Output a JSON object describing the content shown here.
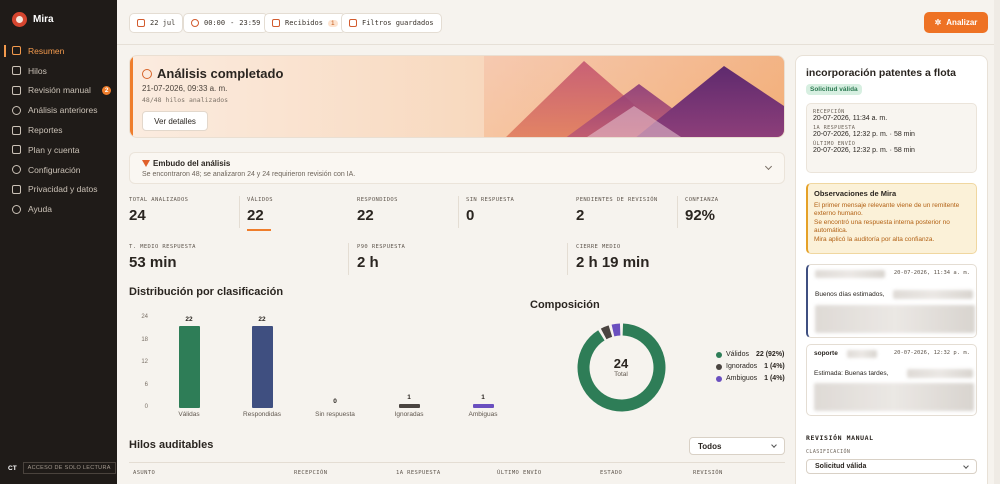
{
  "app": {
    "name": "Mira"
  },
  "sidebar": {
    "items": [
      {
        "label": "Resumen",
        "active": true
      },
      {
        "label": "Hilos"
      },
      {
        "label": "Revisión manual",
        "badge": "2"
      },
      {
        "label": "Análisis anteriores"
      },
      {
        "label": "Reportes"
      },
      {
        "label": "Plan y cuenta"
      },
      {
        "label": "Configuración"
      },
      {
        "label": "Privacidad y datos"
      },
      {
        "label": "Ayuda"
      }
    ],
    "user_initials": "CT",
    "access_label": "ACCESO DE SOLO LECTURA"
  },
  "topbar": {
    "date": "22 jul",
    "time_from": "00:00",
    "time_sep": "-",
    "time_to": "23:59",
    "folder": "Recibidos",
    "folder_count": "1",
    "saved_filters": "Filtros guardados",
    "analyze_label": "Analizar"
  },
  "hero": {
    "title": "Análisis completado",
    "date": "21-07-2026, 09:33 a. m.",
    "sub": "48/48 hilos analizados",
    "button": "Ver detalles"
  },
  "funnel": {
    "title": "Embudo del análisis",
    "desc": "Se encontraron 48; se analizaron 24 y 24 requirieron revisión con IA."
  },
  "stats": [
    {
      "label": "TOTAL ANALIZADOS",
      "value": "24"
    },
    {
      "label": "VÁLIDOS",
      "value": "22"
    },
    {
      "label": "RESPONDIDOS",
      "value": "22"
    },
    {
      "label": "SIN RESPUESTA",
      "value": "0"
    },
    {
      "label": "PENDIENTES DE REVISIÓN",
      "value": "2"
    },
    {
      "label": "CONFIANZA",
      "value": "92%"
    },
    {
      "label": "T. MEDIO RESPUESTA",
      "value": "53 min"
    },
    {
      "label": "P90 RESPUESTA",
      "value": "2 h"
    },
    {
      "label": "CIERRE MEDIO",
      "value": "2 h 19 min"
    }
  ],
  "distribution": {
    "title": "Distribución por clasificación"
  },
  "composition": {
    "title": "Composición",
    "center_value": "24",
    "center_label": "Total",
    "legend": [
      {
        "label": "Válidos",
        "value": "22 (92%)",
        "color": "#2e7d57"
      },
      {
        "label": "Ignorados",
        "value": "1 (4%)",
        "color": "#4a4440"
      },
      {
        "label": "Ambiguos",
        "value": "1 (4%)",
        "color": "#6a4fbf"
      }
    ]
  },
  "chart_data": [
    {
      "type": "bar",
      "title": "Distribución por clasificación",
      "categories": [
        "Válidas",
        "Respondidas",
        "Sin respuesta",
        "Ignoradas",
        "Ambiguas"
      ],
      "values": [
        22,
        22,
        0,
        1,
        1
      ],
      "colors": [
        "#2e7d57",
        "#3f4f80",
        "#c9c2b8",
        "#4a4440",
        "#6a4fbf"
      ],
      "yticks": [
        0,
        6,
        12,
        18,
        24
      ],
      "ylim": [
        0,
        24
      ],
      "grid": false
    },
    {
      "type": "pie",
      "title": "Composición",
      "donut": true,
      "labels": [
        "Válidos",
        "Ignorados",
        "Ambiguos"
      ],
      "values": [
        22,
        1,
        1
      ],
      "colors": [
        "#2e7d57",
        "#4a4440",
        "#6a4fbf"
      ]
    }
  ],
  "threads": {
    "title": "Hilos auditables",
    "filter_value": "Todos",
    "columns": [
      "ASUNTO",
      "RECEPCIÓN",
      "1A RESPUESTA",
      "ÚLTIMO ENVÍO",
      "ESTADO",
      "REVISIÓN"
    ]
  },
  "panel": {
    "title": "incorporación patentes a flota",
    "badge": "Solicitud válida",
    "dates": [
      {
        "k": "RECEPCIÓN",
        "v": "20-07-2026, 11:34 a. m."
      },
      {
        "k": "1A RESPUESTA",
        "v": "20-07-2026, 12:32 p. m. · 58 min"
      },
      {
        "k": "ÚLTIMO ENVÍO",
        "v": "20-07-2026, 12:32 p. m. · 58 min"
      }
    ],
    "obs_title": "Observaciones de Mira",
    "obs_lines": [
      "El primer mensaje relevante viene de un remitente externo humano.",
      "Se encontró una respuesta interna posterior no automática.",
      "Mira aplicó la auditoría por alta confianza."
    ],
    "messages": [
      {
        "from": "",
        "date": "20-07-2026, 11:34 a. m.",
        "body": "Buenos días estimados,"
      },
      {
        "from": "soporte",
        "date": "20-07-2026, 12:32 p. m.",
        "body": "Estimada: Buenas tardes,"
      }
    ],
    "review_title": "REVISIÓN MANUAL",
    "review_label": "CLASIFICACIÓN",
    "review_value": "Solicitud válida"
  }
}
